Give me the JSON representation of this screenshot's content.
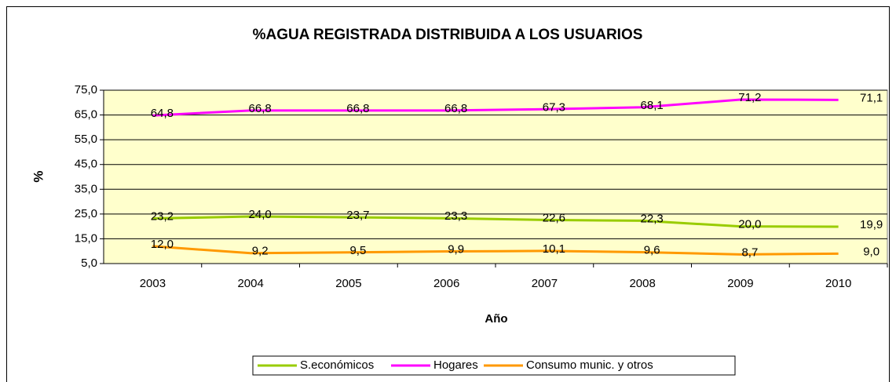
{
  "chart_data": {
    "type": "line",
    "title": "%AGUA REGISTRADA DISTRIBUIDA A LOS USUARIOS",
    "x_label": "Año",
    "y_label": "%",
    "categories": [
      "2003",
      "2004",
      "2005",
      "2006",
      "2007",
      "2008",
      "2009",
      "2010"
    ],
    "series": [
      {
        "name": "S.económicos",
        "color": "#99cc00",
        "values": [
          23.2,
          24.0,
          23.7,
          23.3,
          22.6,
          22.3,
          20.0,
          19.9
        ],
        "value_labels": [
          "23,2",
          "24,0",
          "23,7",
          "23,3",
          "22,6",
          "22,3",
          "20,0",
          "19,9"
        ]
      },
      {
        "name": "Hogares",
        "color": "#ff00ff",
        "values": [
          64.8,
          66.8,
          66.8,
          66.8,
          67.3,
          68.1,
          71.2,
          71.1
        ],
        "value_labels": [
          "64,8",
          "66,8",
          "66,8",
          "66,8",
          "67,3",
          "68,1",
          "71,2",
          "71,1"
        ]
      },
      {
        "name": "Consumo munic. y otros",
        "color": "#ff9900",
        "values": [
          12.0,
          9.2,
          9.5,
          9.9,
          10.1,
          9.6,
          8.7,
          9.0
        ],
        "value_labels": [
          "12,0",
          "9,2",
          "9,5",
          "9,9",
          "10,1",
          "9,6",
          "8,7",
          "9,0"
        ]
      }
    ],
    "ylim": [
      5,
      75
    ],
    "yticks": [
      {
        "value": 5,
        "label": "5,0"
      },
      {
        "value": 15,
        "label": "15,0"
      },
      {
        "value": 25,
        "label": "25,0"
      },
      {
        "value": 35,
        "label": "35,0"
      },
      {
        "value": 45,
        "label": "45,0"
      },
      {
        "value": 55,
        "label": "55,0"
      },
      {
        "value": 65,
        "label": "65,0"
      },
      {
        "value": 75,
        "label": "75,0"
      }
    ],
    "grid": true,
    "legend": "bottom"
  }
}
